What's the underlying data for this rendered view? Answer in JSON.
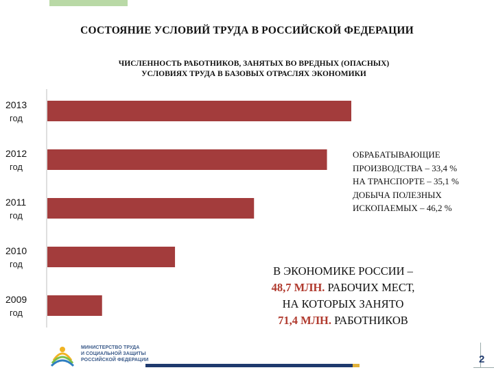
{
  "title": "СОСТОЯНИЕ УСЛОВИЙ ТРУДА В РОССИЙСКОЙ ФЕДЕРАЦИИ",
  "subtitle_line1": "ЧИСЛЕННОСТЬ РАБОТНИКОВ, ЗАНЯТЫХ ВО ВРЕДНЫХ (ОПАСНЫХ)",
  "subtitle_line2": "УСЛОВИЯХ ТРУДА В БАЗОВЫХ ОТРАСЛЯХ ЭКОНОМИКИ",
  "chart_data": {
    "type": "bar",
    "orientation": "horizontal",
    "categories": [
      {
        "year": "2013",
        "unit": "год"
      },
      {
        "year": "2012",
        "unit": "год"
      },
      {
        "year": "2011",
        "unit": "год"
      },
      {
        "year": "2010",
        "unit": "год"
      },
      {
        "year": "2009",
        "unit": "год"
      }
    ],
    "values": [
      100,
      92,
      68,
      42,
      18
    ],
    "xlim": [
      0,
      100
    ],
    "bar_color": "#a33c3c",
    "grid": false
  },
  "note": {
    "lines": [
      "ОБРАБАТЫВАЮЩИЕ",
      "ПРОИЗВОДСТВА – 33,4 %",
      "НА ТРАНСПОРТЕ – 35,1 %",
      "ДОБЫЧА ПОЛЕЗНЫХ",
      "ИСКОПАЕМЫХ – 46,2 %"
    ]
  },
  "summary": {
    "line1": "В ЭКОНОМИКЕ РОССИИ –",
    "line2_value": "48,7 МЛН.",
    "line2_rest": " РАБОЧИХ МЕСТ,",
    "line3": "НА КОТОРЫХ ЗАНЯТО",
    "line4_value": "71,4 МЛН.",
    "line4_rest": " РАБОТНИКОВ"
  },
  "logo": {
    "line1": "МИНИСТЕРСТВО ТРУДА",
    "line2": "И СОЦИАЛЬНОЙ ЗАЩИТЫ",
    "line3": "РОССИЙСКОЙ ФЕДЕРАЦИИ"
  },
  "page_number": "2"
}
